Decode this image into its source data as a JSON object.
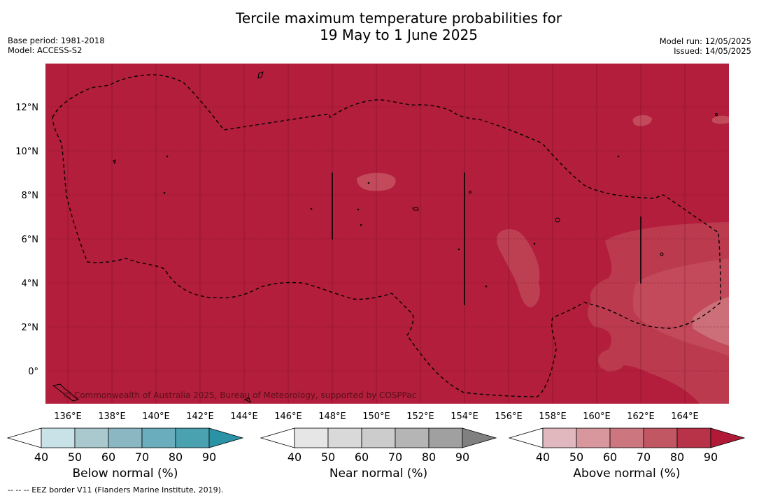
{
  "title_line1": "Tercile maximum temperature probabilities for",
  "title_line2": "19 May to 1 June 2025",
  "base_period": "Base period: 1981-2018",
  "model": "Model: ACCESS-S2",
  "model_run": "Model run: 12/05/2025",
  "issued": "Issued: 14/05/2025",
  "copyright": "© Commonwealth of Australia 2025, Bureau of Meteorology, supported by COSPPac",
  "footnote": "--  --  -- EEZ border V11 (Flanders Marine Institute, 2019).",
  "lat_labels": [
    "12°N",
    "10°N",
    "8°N",
    "6°N",
    "4°N",
    "2°N",
    "0°"
  ],
  "lon_labels": [
    "136°E",
    "138°E",
    "140°E",
    "142°E",
    "144°E",
    "146°E",
    "148°E",
    "150°E",
    "152°E",
    "154°E",
    "156°E",
    "158°E",
    "160°E",
    "162°E",
    "164°E"
  ],
  "colorbars": [
    {
      "name": "Below normal (%)",
      "ticks": [
        "40",
        "50",
        "60",
        "70",
        "80",
        "90"
      ],
      "colors": [
        "#ffffff",
        "#c8e2e8",
        "#a9c9cf",
        "#8ab7c2",
        "#6aaebd",
        "#4aa2b1",
        "#2a93a6"
      ]
    },
    {
      "name": "Near normal (%)",
      "ticks": [
        "40",
        "50",
        "60",
        "70",
        "80",
        "90"
      ],
      "colors": [
        "#ffffff",
        "#e6e6e6",
        "#d9d9d9",
        "#cccccc",
        "#b5b5b5",
        "#a0a0a0",
        "#808080"
      ]
    },
    {
      "name": "Above normal (%)",
      "ticks": [
        "40",
        "50",
        "60",
        "70",
        "80",
        "90"
      ],
      "colors": [
        "#ffffff",
        "#e2b8bf",
        "#d7979d",
        "#cc7780",
        "#c25764",
        "#b93348",
        "#b01a36"
      ]
    }
  ],
  "map_colors": {
    "dominant": "#b21e3b",
    "lighter": "#c24a5a",
    "lightest": "#cd6f79"
  }
}
